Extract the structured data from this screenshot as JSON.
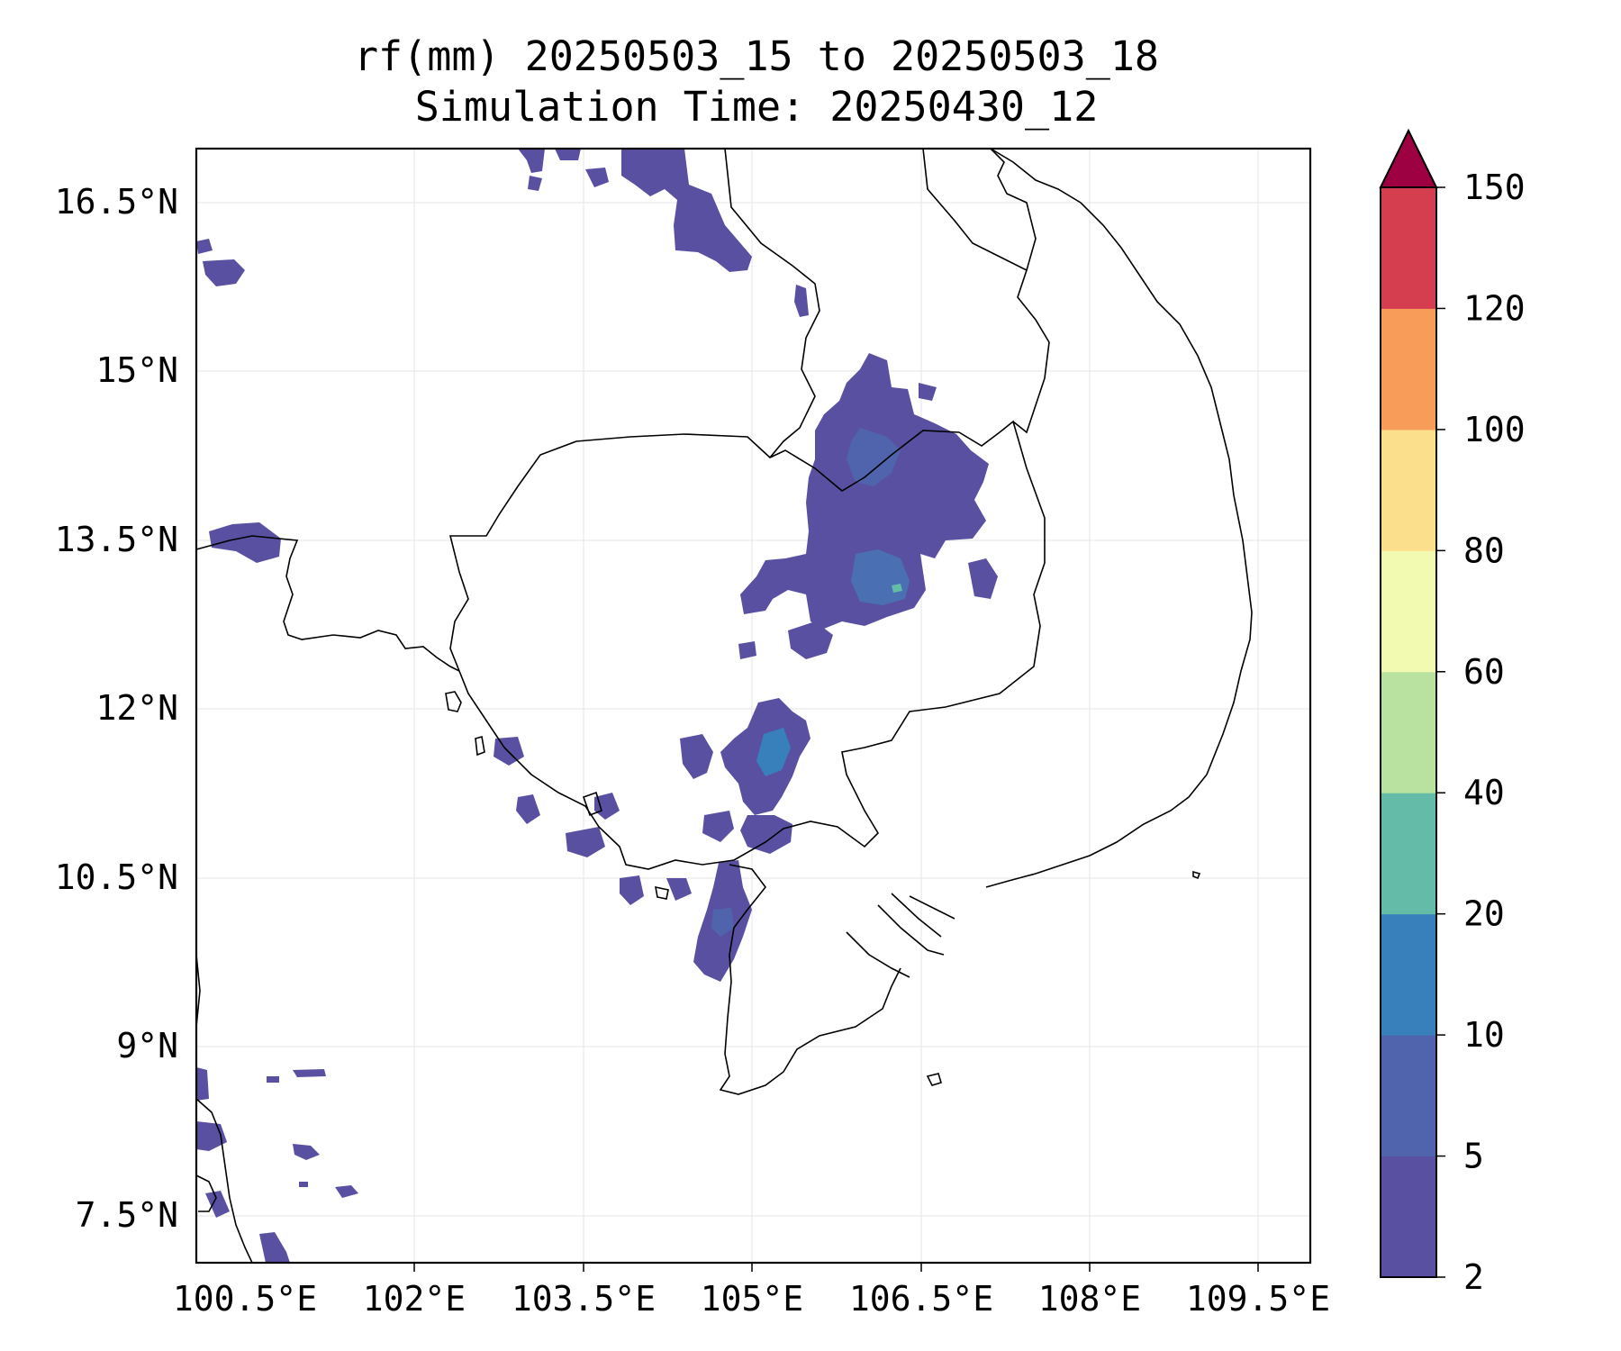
{
  "title": {
    "line1": "rf(mm) 20250503_15 to 20250503_18",
    "line2": "Simulation Time: 20250430_12"
  },
  "axes": {
    "x_ticks": [
      "100.5°E",
      "102°E",
      "103.5°E",
      "105°E",
      "106.5°E",
      "108°E",
      "109.5°E"
    ],
    "y_ticks": [
      "16.5°N",
      "15°N",
      "13.5°N",
      "12°N",
      "10.5°N",
      "9°N",
      "7.5°N"
    ],
    "grid": true
  },
  "colorbar": {
    "levels": [
      "2",
      "5",
      "10",
      "20",
      "40",
      "60",
      "80",
      "100",
      "120",
      "150"
    ],
    "colors": [
      "#5a50a1",
      "#4f64ad",
      "#3780bb",
      "#64bca8",
      "#b9e19f",
      "#f2f9b0",
      "#fbdf8c",
      "#f89c59",
      "#d53e4f",
      "#9e0142"
    ],
    "extend": "max"
  },
  "colors": {
    "rain_light": "#5a50a1",
    "rain_moderate": "#4f64ad",
    "rain_heavy": "#3780bb",
    "rain_peak": "#64bca8",
    "border": "#000000",
    "grid": "#e5e5e5"
  }
}
